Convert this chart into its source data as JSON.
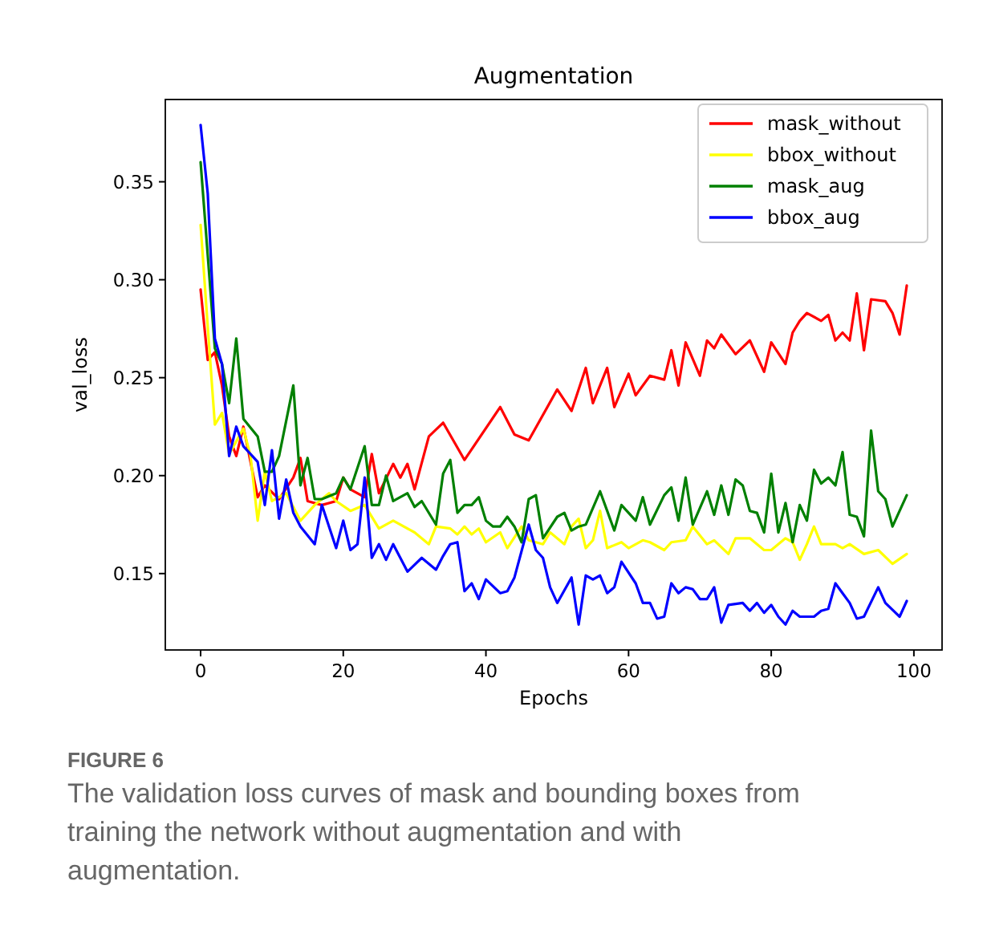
{
  "chart_data": {
    "type": "line",
    "title": "Augmentation",
    "xlabel": "Epochs",
    "ylabel": "val_loss",
    "annotations": [
      "FIGURE 6",
      "The validation loss curves of mask and bounding boxes from training the network without augmentation and with augmentation."
    ],
    "xlim": [
      -4.95,
      103.95
    ],
    "ylim": [
      0.111,
      0.392
    ],
    "xticks": [
      0,
      20,
      40,
      60,
      80,
      100
    ],
    "yticks": [
      {
        "value": 0.15,
        "label": "0.15"
      },
      {
        "value": 0.2,
        "label": "0.20"
      },
      {
        "value": 0.25,
        "label": "0.25"
      },
      {
        "value": 0.3,
        "label": "0.30"
      },
      {
        "value": 0.35,
        "label": "0.35"
      }
    ],
    "legend": "top right",
    "grid": false,
    "marker": "none",
    "line_style": "solid",
    "series": [
      {
        "name": "mask_without",
        "color": "#ff0000",
        "x": [
          0,
          1,
          2,
          3,
          4,
          5,
          6,
          8,
          9,
          11,
          13,
          14,
          15,
          17,
          19,
          20,
          21,
          23,
          24,
          25,
          27,
          28,
          29,
          30,
          32,
          34,
          37,
          42,
          44,
          46,
          50,
          52,
          54,
          55,
          57,
          58,
          60,
          61,
          63,
          65,
          66,
          67,
          68,
          70,
          71,
          72,
          73,
          75,
          77,
          79,
          80,
          82,
          83,
          84,
          85,
          87,
          88,
          89,
          90,
          91,
          92,
          93,
          94,
          96,
          97,
          98,
          99
        ],
        "values": [
          0.295,
          0.259,
          0.263,
          0.246,
          0.22,
          0.21,
          0.225,
          0.189,
          0.195,
          0.188,
          0.199,
          0.209,
          0.187,
          0.185,
          0.187,
          0.199,
          0.193,
          0.189,
          0.211,
          0.191,
          0.206,
          0.199,
          0.206,
          0.193,
          0.22,
          0.227,
          0.208,
          0.235,
          0.221,
          0.218,
          0.244,
          0.233,
          0.255,
          0.237,
          0.255,
          0.235,
          0.252,
          0.241,
          0.251,
          0.249,
          0.264,
          0.246,
          0.268,
          0.251,
          0.269,
          0.265,
          0.272,
          0.262,
          0.269,
          0.253,
          0.268,
          0.257,
          0.273,
          0.279,
          0.283,
          0.279,
          0.282,
          0.269,
          0.273,
          0.269,
          0.293,
          0.264,
          0.29,
          0.289,
          0.283,
          0.272,
          0.297
        ]
      },
      {
        "name": "bbox_without",
        "color": "#ffff00",
        "x": [
          0,
          1,
          2,
          3,
          4,
          6,
          7,
          8,
          9,
          10,
          12,
          14,
          16,
          18,
          19,
          21,
          23,
          25,
          27,
          30,
          32,
          33,
          35,
          36,
          37,
          38,
          39,
          40,
          42,
          43,
          45,
          46,
          48,
          49,
          51,
          52,
          53,
          54,
          55,
          56,
          57,
          59,
          60,
          62,
          63,
          65,
          66,
          68,
          69,
          71,
          72,
          74,
          75,
          77,
          79,
          80,
          82,
          83,
          84,
          85,
          86,
          87,
          89,
          90,
          91,
          93,
          95,
          97,
          99
        ],
        "values": [
          0.328,
          0.276,
          0.226,
          0.232,
          0.211,
          0.224,
          0.21,
          0.177,
          0.202,
          0.187,
          0.191,
          0.177,
          0.185,
          0.191,
          0.187,
          0.182,
          0.185,
          0.173,
          0.177,
          0.171,
          0.165,
          0.174,
          0.173,
          0.17,
          0.174,
          0.17,
          0.173,
          0.166,
          0.171,
          0.163,
          0.174,
          0.167,
          0.165,
          0.171,
          0.165,
          0.174,
          0.178,
          0.163,
          0.167,
          0.182,
          0.163,
          0.166,
          0.163,
          0.167,
          0.166,
          0.162,
          0.166,
          0.167,
          0.174,
          0.165,
          0.167,
          0.16,
          0.168,
          0.168,
          0.162,
          0.162,
          0.168,
          0.166,
          0.157,
          0.165,
          0.174,
          0.165,
          0.165,
          0.163,
          0.165,
          0.16,
          0.162,
          0.155,
          0.16
        ]
      },
      {
        "name": "mask_aug",
        "color": "#008000",
        "x": [
          0,
          2,
          3,
          4,
          5,
          6,
          8,
          9,
          10,
          11,
          13,
          14,
          15,
          16,
          17,
          19,
          20,
          21,
          23,
          24,
          25,
          26,
          27,
          29,
          30,
          31,
          33,
          34,
          35,
          36,
          37,
          38,
          39,
          40,
          41,
          42,
          43,
          44,
          45,
          46,
          47,
          48,
          50,
          51,
          52,
          53,
          54,
          56,
          57,
          58,
          59,
          60,
          61,
          62,
          63,
          65,
          66,
          67,
          68,
          69,
          71,
          72,
          73,
          74,
          75,
          76,
          77,
          78,
          79,
          80,
          81,
          82,
          83,
          84,
          85,
          86,
          87,
          88,
          89,
          90,
          91,
          92,
          93,
          94,
          95,
          96,
          97,
          99
        ],
        "values": [
          0.36,
          0.265,
          0.257,
          0.237,
          0.27,
          0.229,
          0.22,
          0.202,
          0.202,
          0.21,
          0.246,
          0.195,
          0.209,
          0.188,
          0.188,
          0.191,
          0.199,
          0.193,
          0.215,
          0.185,
          0.185,
          0.2,
          0.187,
          0.191,
          0.184,
          0.187,
          0.175,
          0.201,
          0.208,
          0.181,
          0.185,
          0.185,
          0.189,
          0.177,
          0.174,
          0.174,
          0.179,
          0.174,
          0.166,
          0.188,
          0.19,
          0.168,
          0.179,
          0.181,
          0.172,
          0.174,
          0.175,
          0.192,
          0.182,
          0.172,
          0.185,
          0.181,
          0.177,
          0.189,
          0.175,
          0.19,
          0.194,
          0.177,
          0.199,
          0.175,
          0.192,
          0.18,
          0.195,
          0.18,
          0.198,
          0.195,
          0.182,
          0.181,
          0.171,
          0.201,
          0.171,
          0.186,
          0.166,
          0.185,
          0.177,
          0.203,
          0.196,
          0.199,
          0.195,
          0.212,
          0.18,
          0.179,
          0.169,
          0.223,
          0.192,
          0.188,
          0.174,
          0.19
        ]
      },
      {
        "name": "bbox_aug",
        "color": "#0000ff",
        "x": [
          0,
          1,
          2,
          3,
          4,
          5,
          6,
          8,
          9,
          10,
          11,
          12,
          13,
          14,
          16,
          17,
          19,
          20,
          21,
          22,
          23,
          24,
          25,
          26,
          27,
          29,
          31,
          33,
          34,
          35,
          36,
          37,
          38,
          39,
          40,
          42,
          43,
          44,
          46,
          47,
          48,
          49,
          50,
          52,
          53,
          54,
          55,
          56,
          57,
          58,
          59,
          61,
          62,
          63,
          64,
          65,
          66,
          67,
          68,
          69,
          70,
          71,
          72,
          73,
          74,
          76,
          77,
          78,
          79,
          80,
          81,
          82,
          83,
          84,
          86,
          87,
          88,
          89,
          90,
          91,
          92,
          93,
          95,
          96,
          98,
          99
        ],
        "values": [
          0.379,
          0.344,
          0.27,
          0.257,
          0.21,
          0.225,
          0.215,
          0.207,
          0.185,
          0.213,
          0.178,
          0.198,
          0.181,
          0.174,
          0.165,
          0.185,
          0.163,
          0.177,
          0.162,
          0.165,
          0.199,
          0.158,
          0.165,
          0.157,
          0.165,
          0.151,
          0.158,
          0.152,
          0.159,
          0.165,
          0.166,
          0.141,
          0.145,
          0.137,
          0.147,
          0.14,
          0.141,
          0.148,
          0.175,
          0.162,
          0.158,
          0.143,
          0.135,
          0.148,
          0.124,
          0.149,
          0.147,
          0.149,
          0.14,
          0.143,
          0.156,
          0.145,
          0.135,
          0.135,
          0.127,
          0.128,
          0.145,
          0.14,
          0.143,
          0.142,
          0.137,
          0.137,
          0.143,
          0.125,
          0.134,
          0.135,
          0.131,
          0.135,
          0.13,
          0.134,
          0.128,
          0.124,
          0.131,
          0.128,
          0.128,
          0.131,
          0.132,
          0.145,
          0.14,
          0.135,
          0.127,
          0.128,
          0.143,
          0.135,
          0.128,
          0.136
        ]
      }
    ]
  }
}
